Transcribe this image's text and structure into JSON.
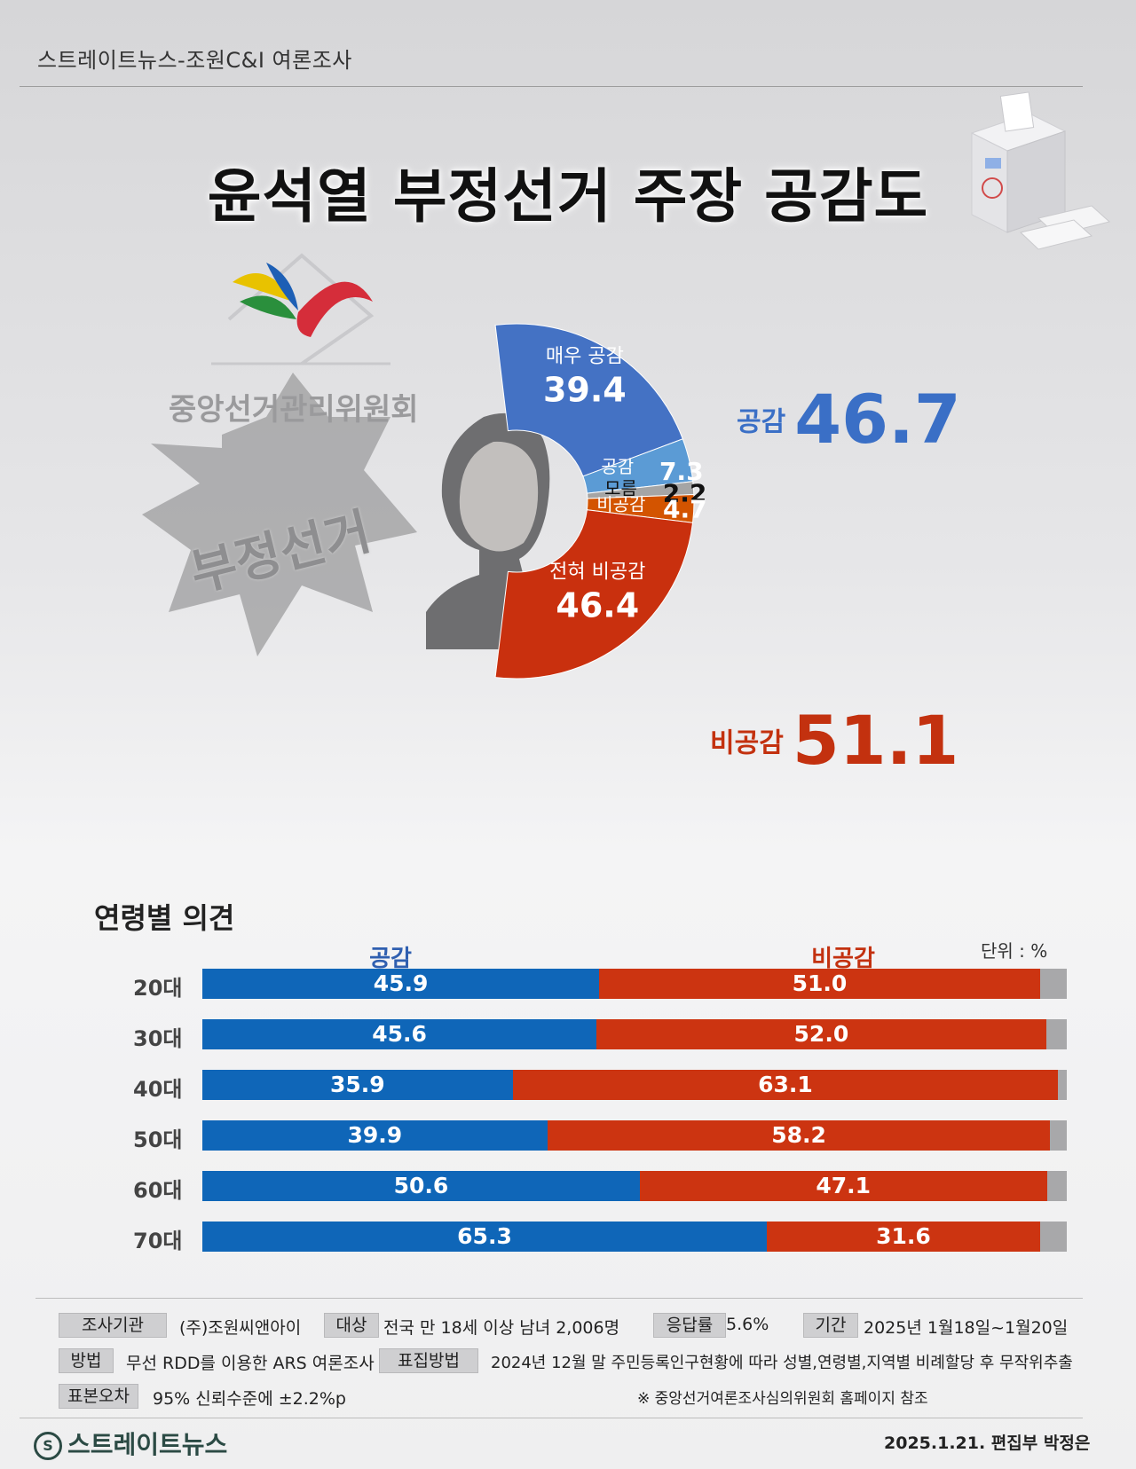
{
  "header": {
    "source": "스트레이트뉴스-조원C&I 여론조사"
  },
  "title": "윤석열 부정선거 주장 공감도",
  "decor": {
    "nec_name": "중앙선거관리위원회",
    "burst_text": "부정선거",
    "icons": [
      "nec-logo-icon",
      "ballot-box-icon",
      "burst-icon",
      "person-photo"
    ]
  },
  "summary": {
    "agree_label": "공감",
    "agree_value": "46.7",
    "disagree_label": "비공감",
    "disagree_value": "51.1"
  },
  "chart_data": [
    {
      "type": "pie",
      "slices": [
        {
          "label": "매우 공감",
          "value": 39.4,
          "color": "#4472c4"
        },
        {
          "label": "공감",
          "value": 7.3,
          "color": "#5b9bd5"
        },
        {
          "label": "모름",
          "value": 2.2,
          "color": "#a5a5a5"
        },
        {
          "label": "비공감",
          "value": 4.7,
          "color": "#d35400"
        },
        {
          "label": "전혀 비공감",
          "value": 46.4,
          "color": "#c9300e"
        }
      ]
    },
    {
      "type": "bar",
      "title": "연령별 의견",
      "unit": "단위 : %",
      "stacked": true,
      "orientation": "horizontal",
      "categories": [
        "20대",
        "30대",
        "40대",
        "50대",
        "60대",
        "70대"
      ],
      "series": [
        {
          "name": "공감",
          "color": "#0f66b8",
          "values": [
            45.9,
            45.6,
            35.9,
            39.9,
            50.6,
            65.3
          ],
          "labels": [
            "45.9",
            "45.6",
            "35.9",
            "39.9",
            "50.6",
            "65.3"
          ]
        },
        {
          "name": "비공감",
          "color": "#cc3411",
          "values": [
            51.0,
            52.0,
            63.1,
            58.2,
            47.1,
            31.6
          ],
          "labels": [
            "51.0",
            "52.0",
            "63.1",
            "58.2",
            "47.1",
            "31.6"
          ]
        }
      ],
      "xlim": [
        0,
        100
      ]
    }
  ],
  "footer": {
    "rows": [
      [
        {
          "chip": "조사기관",
          "text": "(주)조원씨앤아이"
        },
        {
          "chip": "대상",
          "text": "전국 만 18세 이상 남녀 2,006명"
        },
        {
          "chip": "응답률",
          "text": "5.6%"
        },
        {
          "chip": "기간",
          "text": "2025년 1월18일~1월20일"
        }
      ],
      [
        {
          "chip": "방법",
          "text": "무선 RDD를 이용한 ARS 여론조사"
        },
        {
          "chip": "표집방법",
          "text": "2024년 12월 말 주민등록인구현황에 따라 성별,연령별,지역별 비례할당 후 무작위추출"
        }
      ],
      [
        {
          "chip": "표본오차",
          "text": "95% 신뢰수준에 ±2.2%p"
        },
        {
          "chip": "",
          "text": "※ 중앙선거여론조사심의위원회 홈페이지 참조"
        }
      ]
    ],
    "brand": "스트레이트뉴스",
    "credit": "2025.1.21. 편집부 박정은"
  }
}
